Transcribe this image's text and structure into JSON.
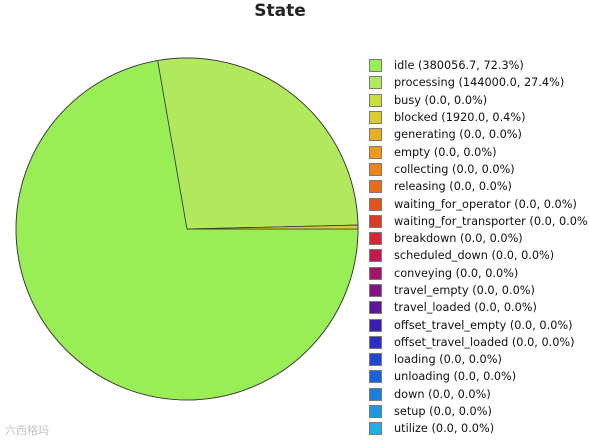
{
  "chart_data": {
    "type": "pie",
    "title": "State",
    "slices": [
      {
        "label": "idle (380056.7, 72.3%)",
        "value": 380056.7,
        "color": "#99ee55"
      },
      {
        "label": "processing (144000.0, 27.4%)",
        "value": 144000.0,
        "color": "#b2e85e"
      },
      {
        "label": "busy (0.0, 0.0%)",
        "value": 0.0,
        "color": "#ccde3c"
      },
      {
        "label": "blocked (1920.0, 0.4%)",
        "value": 1920.0,
        "color": "#d8cc2e"
      },
      {
        "label": "generating (0.0, 0.0%)",
        "value": 0.0,
        "color": "#e8b020"
      },
      {
        "label": "empty (0.0, 0.0%)",
        "value": 0.0,
        "color": "#ef9a1c"
      },
      {
        "label": "collecting (0.0, 0.0%)",
        "value": 0.0,
        "color": "#ee8318"
      },
      {
        "label": "releasing (0.0, 0.0%)",
        "value": 0.0,
        "color": "#eb6a18"
      },
      {
        "label": "waiting_for_operator (0.0, 0.0%)",
        "value": 0.0,
        "color": "#e4521e"
      },
      {
        "label": "waiting_for_transporter (0.0, 0.0%)",
        "value": 0.0,
        "color": "#dd3a26"
      },
      {
        "label": "breakdown (0.0, 0.0%)",
        "value": 0.0,
        "color": "#d42634"
      },
      {
        "label": "scheduled_down (0.0, 0.0%)",
        "value": 0.0,
        "color": "#c21a4e"
      },
      {
        "label": "conveying (0.0, 0.0%)",
        "value": 0.0,
        "color": "#a4146a"
      },
      {
        "label": "travel_empty (0.0, 0.0%)",
        "value": 0.0,
        "color": "#841486"
      },
      {
        "label": "travel_loaded (0.0, 0.0%)",
        "value": 0.0,
        "color": "#5e169e"
      },
      {
        "label": "offset_travel_empty (0.0, 0.0%)",
        "value": 0.0,
        "color": "#3a1eb2"
      },
      {
        "label": "offset_travel_loaded (0.0, 0.0%)",
        "value": 0.0,
        "color": "#2a2ec4"
      },
      {
        "label": "loading (0.0, 0.0%)",
        "value": 0.0,
        "color": "#1e48d2"
      },
      {
        "label": "unloading (0.0, 0.0%)",
        "value": 0.0,
        "color": "#1a62dc"
      },
      {
        "label": "down (0.0, 0.0%)",
        "value": 0.0,
        "color": "#1a7ee0"
      },
      {
        "label": "setup (0.0, 0.0%)",
        "value": 0.0,
        "color": "#1c96e2"
      },
      {
        "label": "utilize (0.0, 0.0%)",
        "value": 0.0,
        "color": "#1eaee4"
      }
    ],
    "legend_position": "right"
  },
  "watermark": {
    "text": "六西格玛"
  }
}
